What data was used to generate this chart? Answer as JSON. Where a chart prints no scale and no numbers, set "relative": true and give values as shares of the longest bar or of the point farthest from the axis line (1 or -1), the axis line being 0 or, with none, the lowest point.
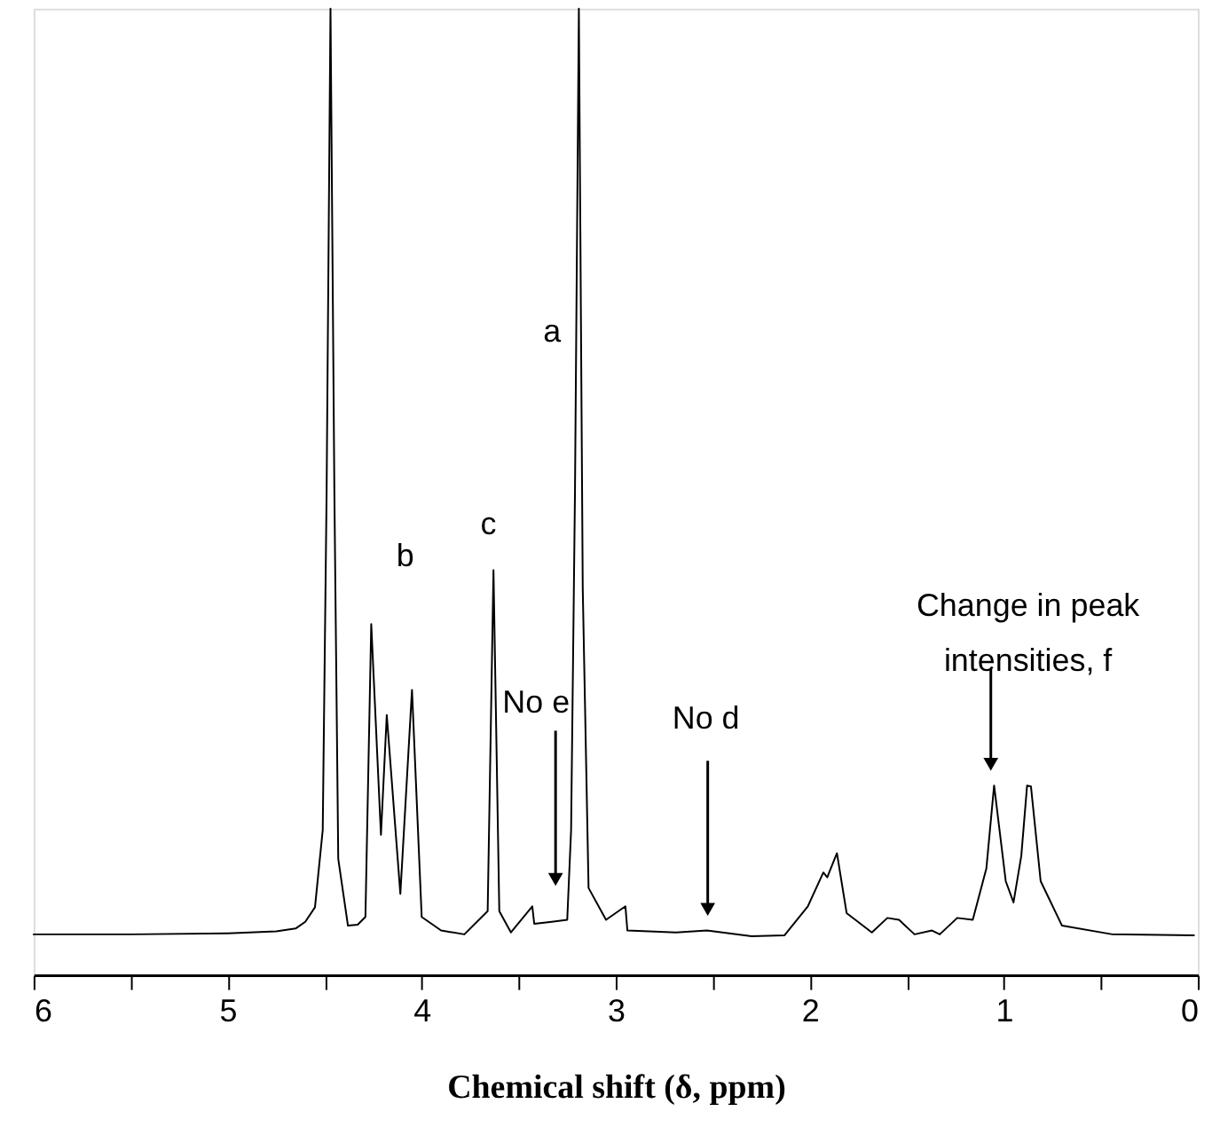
{
  "chart_data": {
    "type": "line",
    "relative": true,
    "xlabel": "Chemical shift (δ, ppm)",
    "xlim": [
      6,
      0
    ],
    "xticks": [
      6,
      {
        "value": 5.5,
        "label": null
      },
      5,
      {
        "value": 4.5,
        "label": null
      },
      4,
      {
        "value": 3.5,
        "label": null
      },
      3,
      {
        "value": 2.5,
        "label": null
      },
      2,
      {
        "value": 1.5,
        "label": null
      },
      1,
      {
        "value": 0.5,
        "label": null
      },
      0
    ],
    "grid": false,
    "marker": "none",
    "line_style": "solid",
    "tick_labels": "x",
    "series": [
      {
        "color": "#000000",
        "x": [
          6.0,
          5.5,
          5.0,
          4.75,
          4.65,
          4.6,
          4.55,
          4.51,
          4.49,
          4.47,
          4.45,
          4.43,
          4.38,
          4.33,
          4.29,
          4.26,
          4.21,
          4.18,
          4.11,
          4.05,
          4.0,
          3.9,
          3.78,
          3.66,
          3.63,
          3.6,
          3.54,
          3.43,
          3.42,
          3.33,
          3.25,
          3.23,
          3.21,
          3.19,
          3.17,
          3.14,
          3.05,
          2.95,
          2.94,
          2.69,
          2.53,
          2.3,
          2.13,
          2.01,
          1.93,
          1.91,
          1.86,
          1.81,
          1.68,
          1.6,
          1.54,
          1.46,
          1.37,
          1.33,
          1.24,
          1.16,
          1.09,
          1.05,
          0.99,
          0.95,
          0.91,
          0.88,
          0.86,
          0.81,
          0.7,
          0.44,
          0.02
        ],
        "values": [
          0.042,
          0.042,
          0.043,
          0.045,
          0.048,
          0.055,
          0.07,
          0.15,
          0.5,
          1.0,
          0.5,
          0.12,
          0.051,
          0.052,
          0.06,
          0.363,
          0.145,
          0.269,
          0.084,
          0.295,
          0.06,
          0.046,
          0.042,
          0.066,
          0.419,
          0.066,
          0.044,
          0.071,
          0.053,
          0.055,
          0.057,
          0.15,
          0.5,
          1.0,
          0.4,
          0.09,
          0.057,
          0.071,
          0.046,
          0.044,
          0.046,
          0.04,
          0.041,
          0.071,
          0.106,
          0.101,
          0.126,
          0.064,
          0.044,
          0.059,
          0.057,
          0.042,
          0.046,
          0.042,
          0.059,
          0.057,
          0.11,
          0.196,
          0.097,
          0.075,
          0.123,
          0.196,
          0.195,
          0.097,
          0.051,
          0.042,
          0.041
        ]
      }
    ],
    "annotations": [
      "a",
      "b",
      "c",
      "No e",
      "No d",
      "Change in peak\nintensities, f"
    ]
  }
}
